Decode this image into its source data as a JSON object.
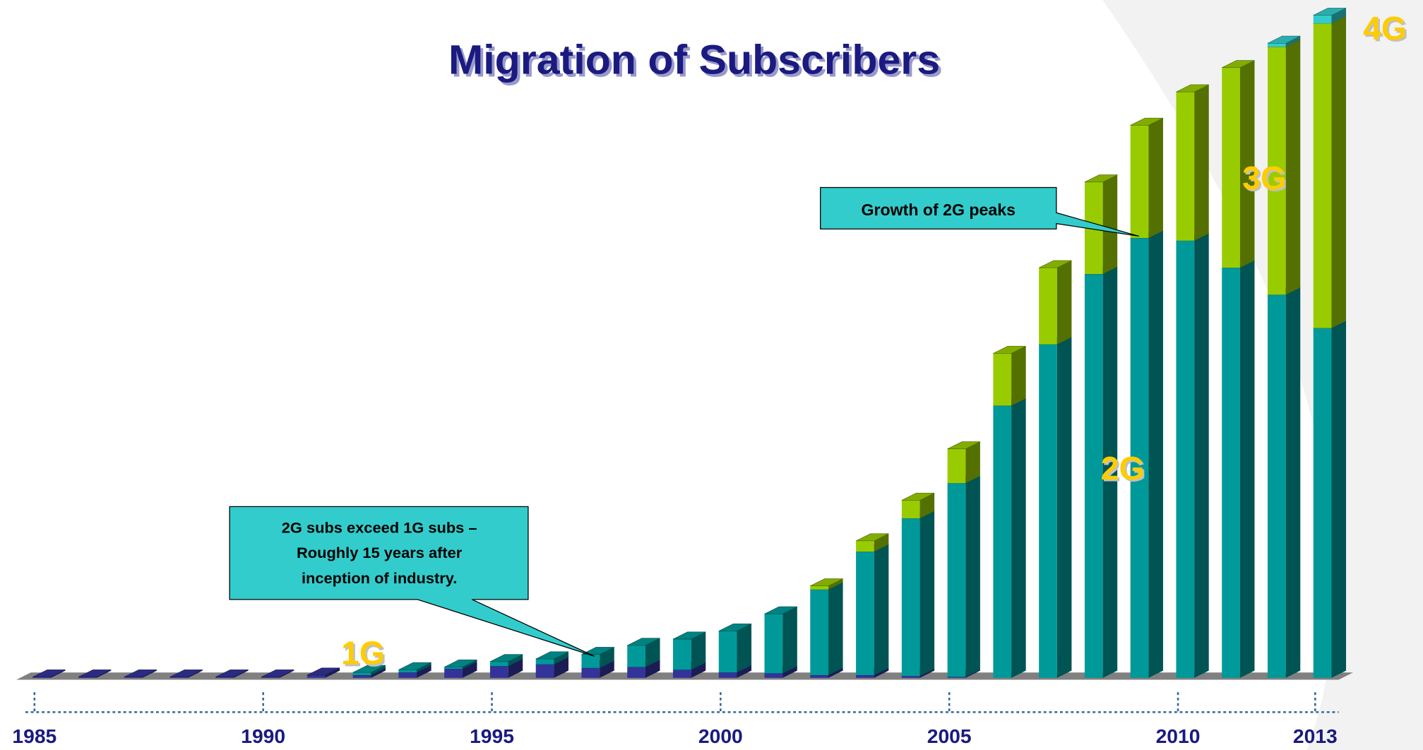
{
  "chart_data": {
    "type": "bar3d-stacked",
    "title": "Migration of Subscribers",
    "categories": [
      "1985",
      null,
      null,
      null,
      null,
      "1990",
      null,
      null,
      null,
      null,
      "1995",
      null,
      null,
      null,
      null,
      "2000",
      null,
      null,
      null,
      null,
      "2005",
      null,
      null,
      null,
      null,
      "2010",
      null,
      null,
      "2013"
    ],
    "series": [
      {
        "name": "1G",
        "color": "#333399",
        "values": [
          1,
          1,
          1,
          1,
          1,
          1,
          3,
          3,
          6,
          10,
          13,
          15,
          11,
          12,
          9,
          6,
          5,
          3,
          3,
          2,
          1,
          0,
          0,
          0,
          0,
          0,
          0,
          0,
          0
        ]
      },
      {
        "name": "2G",
        "color": "#009999",
        "values": [
          0,
          0,
          0,
          0,
          0,
          0,
          0,
          3,
          3,
          2,
          5,
          6,
          15,
          24,
          34,
          46,
          66,
          95,
          137,
          175,
          215,
          302,
          370,
          448,
          488,
          485,
          455,
          425,
          388
        ]
      },
      {
        "name": "3G",
        "color": "#99cc00",
        "values": [
          0,
          0,
          0,
          0,
          0,
          0,
          0,
          0,
          0,
          0,
          0,
          0,
          0,
          0,
          0,
          0,
          0,
          4,
          12,
          20,
          38,
          58,
          85,
          102,
          125,
          165,
          222,
          275,
          338
        ]
      },
      {
        "name": "4G",
        "color": "#33cccc",
        "values": [
          0,
          0,
          0,
          0,
          0,
          0,
          0,
          0,
          0,
          0,
          0,
          0,
          0,
          0,
          0,
          0,
          0,
          0,
          0,
          0,
          0,
          0,
          0,
          0,
          0,
          0,
          0,
          4,
          9
        ]
      }
    ],
    "annotations": [
      "2G subs exceed 1G subs –",
      "Roughly 15 years after",
      "inception of industry.",
      "Growth of 2G peaks"
    ]
  }
}
